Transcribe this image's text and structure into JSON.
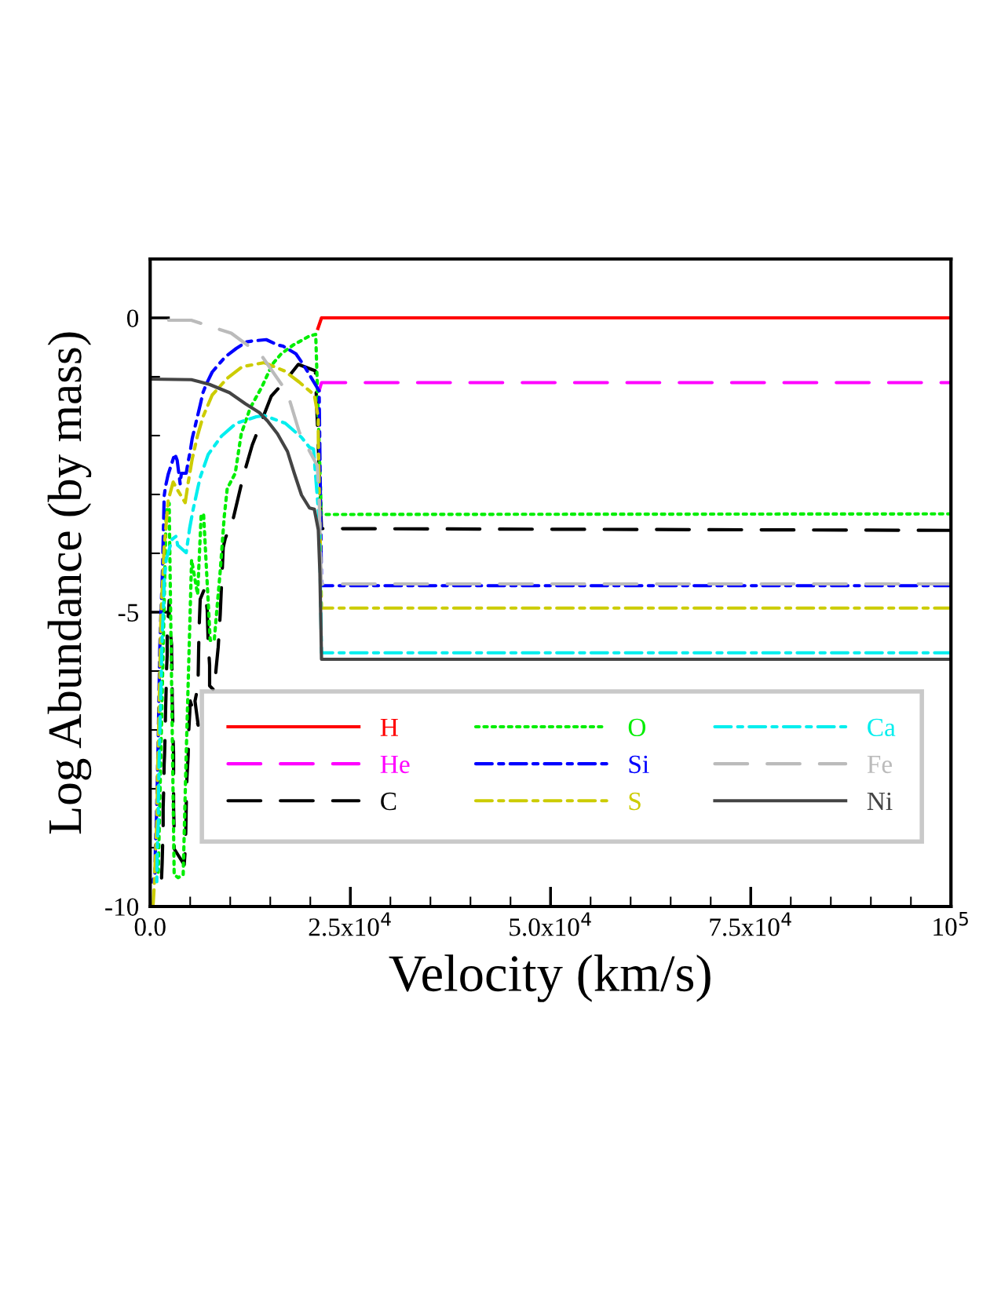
{
  "chart_data": {
    "type": "line",
    "xlabel": "Velocity (km/s)",
    "ylabel": "Log Abundance (by mass)",
    "xlim": [
      0,
      100000
    ],
    "ylim": [
      -10,
      1
    ],
    "xticks": [
      {
        "value": 0,
        "label": "0.0"
      },
      {
        "value": 5000,
        "label": null
      },
      {
        "value": 10000,
        "label": null
      },
      {
        "value": 15000,
        "label": null
      },
      {
        "value": 20000,
        "label": null
      },
      {
        "value": 25000,
        "label": "2.5x10$^{4}$"
      },
      {
        "value": 30000,
        "label": null
      },
      {
        "value": 35000,
        "label": null
      },
      {
        "value": 40000,
        "label": null
      },
      {
        "value": 45000,
        "label": null
      },
      {
        "value": 50000,
        "label": "5.0x10$^{4}$"
      },
      {
        "value": 55000,
        "label": null
      },
      {
        "value": 60000,
        "label": null
      },
      {
        "value": 65000,
        "label": null
      },
      {
        "value": 70000,
        "label": null
      },
      {
        "value": 75000,
        "label": "7.5x10$^{4}$"
      },
      {
        "value": 80000,
        "label": null
      },
      {
        "value": 85000,
        "label": null
      },
      {
        "value": 90000,
        "label": null
      },
      {
        "value": 95000,
        "label": null
      },
      {
        "value": 100000,
        "label": "10$^{5}$"
      }
    ],
    "yticks": [
      {
        "value": -10,
        "label": "-10"
      },
      {
        "value": -9,
        "label": null
      },
      {
        "value": -8,
        "label": null
      },
      {
        "value": -7,
        "label": null
      },
      {
        "value": -6,
        "label": null
      },
      {
        "value": -5,
        "label": "-5"
      },
      {
        "value": -4,
        "label": null
      },
      {
        "value": -3,
        "label": null
      },
      {
        "value": -2,
        "label": null
      },
      {
        "value": -1,
        "label": null
      },
      {
        "value": 0,
        "label": "0"
      }
    ],
    "grid": false,
    "legend": "lower right",
    "series": [
      {
        "name": "H",
        "color": "#ff0000",
        "line_style": "solid",
        "x": [
          20950,
          21400,
          100000
        ],
        "values": [
          -0.18,
          0,
          0
        ]
      },
      {
        "name": "He",
        "color": "#ff00ff",
        "line_style": "dashed",
        "x": [
          21100,
          21400,
          100000
        ],
        "values": [
          -1.24,
          -1.1,
          -1.1
        ]
      },
      {
        "name": "C",
        "color": "#000000",
        "line_style": "dashed",
        "x": [
          100000,
          21400,
          20625,
          18500,
          16875,
          15125,
          12750,
          11625,
          10375,
          9375,
          9125,
          9000,
          8875,
          8750,
          8500,
          8250,
          8000,
          7425,
          7425,
          7250,
          7125,
          6800,
          6250,
          6100,
          6050,
          6000,
          6000,
          5600,
          6000,
          5000,
          4950,
          4800,
          4750,
          4600,
          4550,
          4500,
          4450,
          4350,
          4250,
          3000,
          3000,
          2925,
          2925,
          2925,
          2925,
          2825,
          2825,
          2750,
          2750,
          2675,
          2675,
          2375,
          2375,
          2125,
          2125,
          2000,
          2000,
          1925,
          1875,
          1800,
          1750,
          1700,
          1625,
          1625,
          1575,
          1500,
          1425,
          375
        ],
        "values": [
          -3.61,
          -3.58,
          -0.9,
          -0.79,
          -1.07,
          -1.33,
          -2.16,
          -2.69,
          -3.41,
          -3.75,
          -3.9,
          -4.3,
          -4.65,
          -5.04,
          -5.59,
          -5.94,
          -6.33,
          -6.25,
          -5.9,
          -5.52,
          -4.96,
          -4.6,
          -4.78,
          -5.33,
          -5.68,
          -6.07,
          -6.24,
          -6.51,
          -6.92,
          -6.51,
          -6.7,
          -7.07,
          -7.43,
          -7.8,
          -7.99,
          -8.36,
          -8.73,
          -9.1,
          -9.29,
          -9.02,
          -8.69,
          -8.32,
          -8.14,
          -7.73,
          -7.4,
          -6.99,
          -6.85,
          -6.44,
          -6.11,
          -5.7,
          -5.55,
          -5.15,
          -4.8,
          -5.37,
          -5.74,
          -6.12,
          -6.29,
          -6.68,
          -7.03,
          -7.42,
          -7.58,
          -7.97,
          -8.32,
          -8.71,
          -8.87,
          -9.26,
          -9.52,
          -9.53
        ]
      },
      {
        "name": "O",
        "color": "#00ee00",
        "line_style": "dotted",
        "x": [
          100000,
          21375,
          20675,
          19875,
          17875,
          16375,
          15250,
          14000,
          12500,
          11375,
          10625,
          9625,
          9250,
          8750,
          8000,
          7500,
          6675,
          6375,
          5925,
          5175,
          4500,
          4125,
          3500,
          3000,
          2375,
          2000,
          1000
        ],
        "values": [
          -3.33,
          -3.34,
          -0.28,
          -0.31,
          -0.46,
          -0.61,
          -0.79,
          -1.16,
          -1.53,
          -1.97,
          -2.64,
          -2.9,
          -3.38,
          -4.3,
          -5.48,
          -5.48,
          -3.34,
          -3.34,
          -4.7,
          -4.11,
          -7.43,
          -9.46,
          -9.51,
          -9.46,
          -3.15,
          -3.3,
          -9.5
        ]
      },
      {
        "name": "Si",
        "color": "#0000ff",
        "line_style": "dashdot",
        "x": [
          100000,
          21400,
          21100,
          19600,
          19100,
          18200,
          16600,
          15900,
          14500,
          12900,
          12000,
          10750,
          9400,
          8750,
          7750,
          7000,
          6600,
          6250,
          5900,
          5600,
          5250,
          5000,
          4750,
          4500,
          3900,
          3750,
          3375,
          3075,
          2750,
          2250,
          1925,
          1750,
          1675,
          1550,
          1500,
          1400,
          1200,
          1150,
          1000,
          900,
          800,
          650,
          600,
          250
        ],
        "values": [
          -4.55,
          -4.55,
          -1.24,
          -0.9,
          -0.79,
          -0.61,
          -0.48,
          -0.46,
          -0.37,
          -0.39,
          -0.41,
          -0.52,
          -0.66,
          -0.76,
          -0.92,
          -1.13,
          -1.27,
          -1.48,
          -1.68,
          -1.85,
          -2.05,
          -2.27,
          -2.44,
          -2.64,
          -2.64,
          -2.82,
          -2.42,
          -2.31,
          -2.45,
          -2.66,
          -2.86,
          -3.03,
          -3.49,
          -4.23,
          -4.45,
          -4.83,
          -5.63,
          -6.03,
          -7.21,
          -7.84,
          -8.43,
          -9.02,
          -9.47,
          -9.58
        ]
      },
      {
        "name": "S",
        "color": "#cccc00",
        "line_style": "dashdot",
        "x": [
          100000,
          21400,
          21000,
          21000,
          20500,
          18600,
          16750,
          14250,
          11500,
          9600,
          7750,
          6600,
          5900,
          5250,
          4750,
          4375,
          3400,
          2875,
          2250,
          1750,
          1625,
          1350,
          1300,
          1000,
          925,
          850,
          750,
          500,
          375
        ],
        "values": [
          -4.93,
          -4.93,
          -2.05,
          -1.7,
          -1.31,
          -1.09,
          -0.9,
          -0.76,
          -0.83,
          -1.03,
          -1.31,
          -1.68,
          -2.01,
          -2.4,
          -2.8,
          -3.14,
          -2.92,
          -2.79,
          -3.1,
          -3.91,
          -4.26,
          -5.07,
          -5.42,
          -7.36,
          -7.71,
          -8.51,
          -8.84,
          -9.67,
          -9.96
        ]
      },
      {
        "name": "Ca",
        "color": "#00eeee",
        "line_style": "dashdot",
        "x": [
          100000,
          21400,
          21175,
          21175,
          20400,
          19900,
          18900,
          16875,
          14250,
          13250,
          10750,
          8900,
          7250,
          6250,
          6000,
          5375,
          4925,
          4500,
          3425,
          3250,
          2750,
          2000,
          1750,
          1675,
          1625,
          1500,
          1425,
          1375,
          1300,
          1250,
          1200,
          1125,
          1075,
          1000,
          1050,
          925,
          875,
          825
        ],
        "values": [
          -5.69,
          -5.69,
          -3.89,
          -3.56,
          -2.23,
          -2.2,
          -2.03,
          -1.79,
          -1.66,
          -1.68,
          -1.79,
          -2.01,
          -2.32,
          -2.71,
          -2.86,
          -3.25,
          -3.58,
          -3.99,
          -3.86,
          -3.71,
          -3.76,
          -4.11,
          -4.48,
          -4.89,
          -5.04,
          -5.44,
          -5.79,
          -6.2,
          -6.61,
          -6.77,
          -7.16,
          -7.51,
          -7.91,
          -8.3,
          -8.47,
          -8.87,
          -9.2,
          -9.61
        ]
      },
      {
        "name": "Fe",
        "color": "#bbbbbb",
        "line_style": "dashed",
        "x": [
          100000,
          21375,
          21125,
          20875,
          18625,
          17125,
          14000,
          12125,
          10125,
          5125,
          125
        ],
        "values": [
          -4.52,
          -4.52,
          -3.19,
          -2.51,
          -1.94,
          -1.27,
          -0.66,
          -0.46,
          -0.26,
          -0.04,
          -0.04
        ]
      },
      {
        "name": "Ni",
        "color": "#444444",
        "line_style": "solid",
        "x": [
          100000,
          21400,
          21200,
          21000,
          20500,
          19900,
          18900,
          18000,
          17150,
          15900,
          14650,
          13650,
          11900,
          9900,
          7400,
          5150,
          0
        ],
        "values": [
          -5.8,
          -5.8,
          -4.34,
          -3.6,
          -3.25,
          -3.23,
          -3.01,
          -2.64,
          -2.27,
          -1.97,
          -1.75,
          -1.61,
          -1.46,
          -1.27,
          -1.13,
          -1.05,
          -1.04
        ]
      }
    ]
  }
}
